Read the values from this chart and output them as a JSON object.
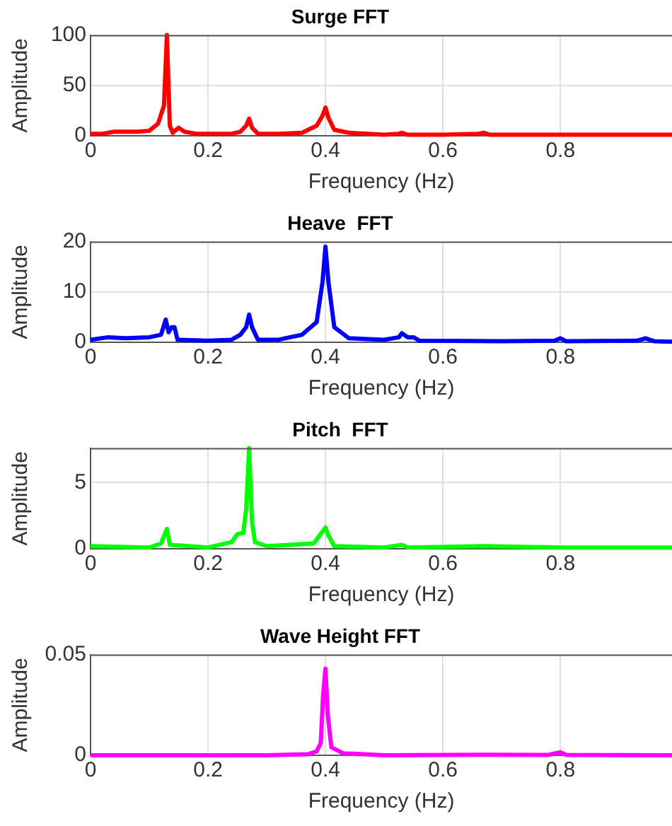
{
  "chart_data": [
    {
      "type": "line",
      "title": "Surge FFT",
      "xlabel": "Frequency (Hz)",
      "ylabel": "Amplitude",
      "grid": true,
      "xlim": [
        0,
        0.99
      ],
      "xticks": [
        0,
        0.2,
        0.4,
        0.6,
        0.8
      ],
      "ylim": [
        0,
        100
      ],
      "yticks": [
        0,
        50,
        100
      ],
      "x": [
        0,
        0.02,
        0.04,
        0.06,
        0.08,
        0.1,
        0.115,
        0.125,
        0.13,
        0.135,
        0.14,
        0.15,
        0.16,
        0.18,
        0.2,
        0.24,
        0.255,
        0.265,
        0.27,
        0.275,
        0.285,
        0.32,
        0.36,
        0.385,
        0.395,
        0.4,
        0.405,
        0.415,
        0.44,
        0.5,
        0.525,
        0.53,
        0.54,
        0.6,
        0.66,
        0.67,
        0.68,
        0.75,
        0.8,
        0.9,
        0.99
      ],
      "series": [
        {
          "color": "#ff0000",
          "values": [
            2,
            2,
            4,
            4,
            4,
            5,
            12,
            30,
            100,
            10,
            3,
            8,
            4,
            2,
            2,
            2,
            4,
            10,
            17,
            8,
            2,
            2,
            3,
            10,
            20,
            28,
            18,
            6,
            3,
            1,
            2,
            3,
            1,
            1,
            2,
            3,
            1,
            1,
            1,
            1,
            1
          ]
        }
      ]
    },
    {
      "type": "line",
      "title": "Heave  FFT",
      "xlabel": "Frequency (Hz)",
      "ylabel": "Amplitude",
      "grid": true,
      "xlim": [
        0,
        0.99
      ],
      "xticks": [
        0,
        0.2,
        0.4,
        0.6,
        0.8
      ],
      "ylim": [
        0,
        20
      ],
      "yticks": [
        0,
        10,
        20
      ],
      "x": [
        0,
        0.03,
        0.06,
        0.1,
        0.12,
        0.128,
        0.133,
        0.138,
        0.143,
        0.148,
        0.2,
        0.24,
        0.255,
        0.265,
        0.27,
        0.275,
        0.285,
        0.32,
        0.36,
        0.385,
        0.395,
        0.4,
        0.405,
        0.415,
        0.44,
        0.5,
        0.525,
        0.53,
        0.54,
        0.55,
        0.56,
        0.7,
        0.79,
        0.8,
        0.81,
        0.93,
        0.945,
        0.96,
        0.99
      ],
      "series": [
        {
          "color": "#0000ff",
          "values": [
            0.5,
            1,
            0.8,
            1,
            1.5,
            4.5,
            2,
            3,
            3,
            0.5,
            0.3,
            0.5,
            1.5,
            3,
            5.5,
            3,
            0.5,
            0.5,
            1.5,
            4,
            12,
            19,
            12,
            3,
            0.8,
            0.5,
            1,
            1.8,
            1,
            1,
            0.3,
            0.2,
            0.3,
            0.8,
            0.2,
            0.3,
            0.8,
            0.2,
            0.1
          ]
        }
      ]
    },
    {
      "type": "line",
      "title": "Pitch  FFT",
      "xlabel": "Frequency (Hz)",
      "ylabel": "Amplitude",
      "grid": true,
      "xlim": [
        0,
        0.99
      ],
      "xticks": [
        0,
        0.2,
        0.4,
        0.6,
        0.8
      ],
      "ylim": [
        0,
        7.6
      ],
      "yticks": [
        0,
        5
      ],
      "x": [
        0,
        0.1,
        0.12,
        0.13,
        0.135,
        0.2,
        0.24,
        0.25,
        0.26,
        0.265,
        0.27,
        0.275,
        0.28,
        0.3,
        0.38,
        0.395,
        0.4,
        0.405,
        0.415,
        0.5,
        0.53,
        0.54,
        0.67,
        0.8,
        0.99
      ],
      "series": [
        {
          "color": "#00ff00",
          "values": [
            0.2,
            0.1,
            0.4,
            1.5,
            0.3,
            0.1,
            0.5,
            1.1,
            1.2,
            3,
            7.6,
            2,
            0.5,
            0.2,
            0.4,
            1.3,
            1.6,
            1,
            0.2,
            0.1,
            0.3,
            0.1,
            0.2,
            0.1,
            0.1
          ]
        }
      ]
    },
    {
      "type": "line",
      "title": "Wave Height FFT",
      "xlabel": "Frequency (Hz)",
      "ylabel": "Amplitude",
      "grid": true,
      "xlim": [
        0,
        0.99
      ],
      "xticks": [
        0,
        0.2,
        0.4,
        0.6,
        0.8
      ],
      "ylim": [
        0,
        0.05
      ],
      "yticks": [
        0,
        0.05
      ],
      "x": [
        0,
        0.3,
        0.37,
        0.385,
        0.392,
        0.396,
        0.4,
        0.404,
        0.41,
        0.43,
        0.5,
        0.67,
        0.78,
        0.8,
        0.81,
        0.99
      ],
      "series": [
        {
          "color": "#ff00ff",
          "values": [
            0,
            0,
            0.0005,
            0.002,
            0.006,
            0.03,
            0.043,
            0.02,
            0.004,
            0.001,
            0,
            0.0003,
            0.0002,
            0.0015,
            0.0002,
            0
          ]
        }
      ]
    }
  ]
}
